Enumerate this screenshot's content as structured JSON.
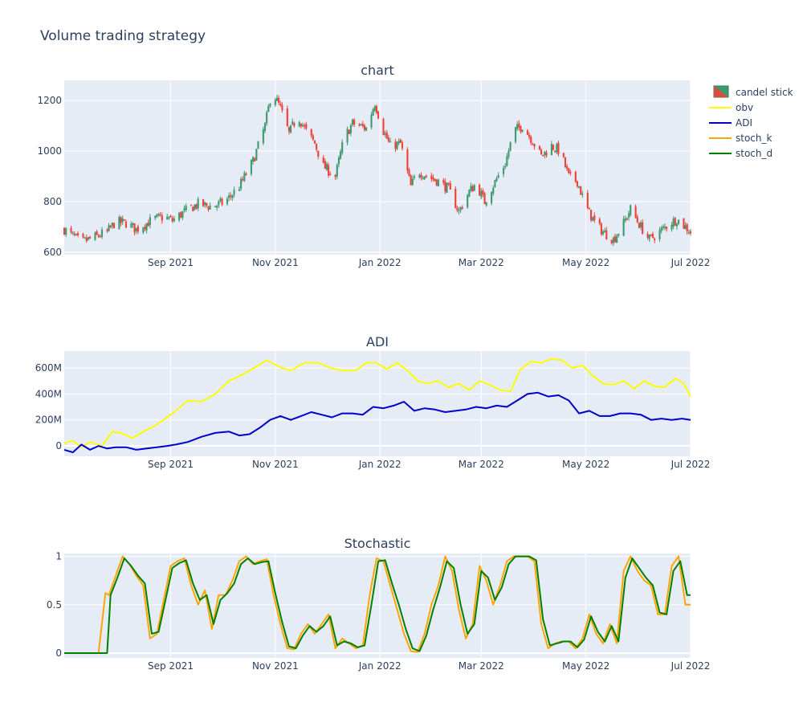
{
  "page": {
    "title": "Volume trading strategy"
  },
  "colors": {
    "plot_bg": "#e5ecf6",
    "grid": "#ffffff",
    "increasing": "#3d9970",
    "decreasing": "#ef4136",
    "obv": "#ffff00",
    "adi": "#0000cd",
    "stoch_k": "#ffa500",
    "stoch_d": "#008000"
  },
  "chart_data": [
    {
      "type": "candlestick",
      "title": "chart",
      "x_range": [
        "2021-07-01",
        "2022-07-01"
      ],
      "x_ticks": [
        "Sep 2021",
        "Nov 2021",
        "Jan 2022",
        "Mar 2022",
        "May 2022",
        "Jul 2022"
      ],
      "x_tick_days": [
        62,
        123,
        184,
        243,
        304,
        365
      ],
      "ylim": [
        590,
        1280
      ],
      "y_ticks": [
        600,
        800,
        1000,
        1200
      ],
      "y_tick_labels": [
        "600",
        "800",
        "1000",
        "1200"
      ],
      "series_name": "candel stick",
      "close_anchors_day": [
        0,
        6,
        10,
        18,
        25,
        30,
        36,
        42,
        47,
        52,
        58,
        63,
        70,
        78,
        86,
        94,
        102,
        110,
        117,
        121,
        126,
        131,
        136,
        141,
        146,
        151,
        158,
        163,
        168,
        176,
        181,
        186,
        190,
        196,
        202,
        206,
        212,
        218,
        224,
        230,
        236,
        240,
        245,
        252,
        257,
        262,
        267,
        273,
        278,
        284,
        289,
        294,
        299,
        304,
        309,
        314,
        320,
        325,
        330,
        336,
        341,
        347,
        352,
        357,
        362,
        365
      ],
      "close_anchors": [
        690,
        660,
        640,
        660,
        680,
        720,
        715,
        690,
        710,
        730,
        740,
        725,
        760,
        790,
        780,
        800,
        860,
        960,
        1100,
        1240,
        1170,
        1070,
        1140,
        1080,
        1030,
        940,
        900,
        1050,
        1110,
        1090,
        1190,
        1080,
        1020,
        1030,
        860,
        920,
        900,
        880,
        850,
        760,
        840,
        870,
        800,
        890,
        950,
        1080,
        1100,
        1040,
        980,
        1020,
        1000,
        900,
        880,
        780,
        720,
        680,
        650,
        700,
        770,
        700,
        650,
        680,
        710,
        730,
        700,
        680
      ]
    },
    {
      "type": "line",
      "title": "ADI",
      "x_range": [
        "2021-07-01",
        "2022-07-01"
      ],
      "x_ticks": [
        "Sep 2021",
        "Nov 2021",
        "Jan 2022",
        "Mar 2022",
        "May 2022",
        "Jul 2022"
      ],
      "x_tick_days": [
        62,
        123,
        184,
        243,
        304,
        365
      ],
      "ylim": [
        -80,
        730
      ],
      "y_ticks": [
        0,
        200,
        400,
        600
      ],
      "y_tick_labels": [
        "0",
        "200M",
        "400M",
        "600M"
      ],
      "y_unit": "M",
      "series": [
        {
          "name": "obv",
          "x_day": [
            0,
            5,
            10,
            15,
            22,
            28,
            33,
            40,
            46,
            52,
            58,
            65,
            72,
            80,
            88,
            96,
            104,
            112,
            118,
            125,
            132,
            140,
            148,
            155,
            162,
            170,
            176,
            182,
            188,
            194,
            200,
            206,
            212,
            218,
            224,
            230,
            236,
            242,
            248,
            254,
            260,
            266,
            272,
            278,
            284,
            290,
            296,
            302,
            308,
            314,
            320,
            326,
            332,
            338,
            344,
            350,
            356,
            361,
            365
          ],
          "values": [
            20,
            40,
            -10,
            30,
            0,
            110,
            100,
            60,
            110,
            150,
            200,
            270,
            350,
            340,
            400,
            500,
            550,
            610,
            660,
            610,
            580,
            640,
            640,
            600,
            580,
            580,
            640,
            640,
            590,
            640,
            580,
            500,
            480,
            500,
            450,
            480,
            430,
            500,
            470,
            430,
            420,
            590,
            650,
            640,
            670,
            660,
            600,
            620,
            540,
            480,
            470,
            500,
            440,
            500,
            460,
            450,
            520,
            480,
            380
          ]
        },
        {
          "name": "ADI",
          "x_day": [
            0,
            5,
            10,
            15,
            20,
            25,
            30,
            36,
            42,
            48,
            54,
            60,
            65,
            72,
            80,
            88,
            96,
            102,
            108,
            114,
            120,
            126,
            132,
            138,
            144,
            150,
            156,
            162,
            168,
            174,
            180,
            186,
            192,
            198,
            204,
            210,
            216,
            222,
            228,
            234,
            240,
            246,
            252,
            258,
            264,
            270,
            276,
            282,
            288,
            294,
            300,
            306,
            312,
            318,
            324,
            330,
            336,
            342,
            348,
            354,
            360,
            365
          ],
          "values": [
            -30,
            -50,
            10,
            -30,
            0,
            -20,
            -10,
            -10,
            -30,
            -20,
            -10,
            0,
            10,
            30,
            70,
            100,
            110,
            80,
            90,
            140,
            200,
            230,
            200,
            230,
            260,
            240,
            220,
            250,
            250,
            240,
            300,
            290,
            310,
            340,
            270,
            290,
            280,
            260,
            270,
            280,
            300,
            290,
            310,
            300,
            350,
            400,
            410,
            380,
            390,
            350,
            250,
            270,
            230,
            230,
            250,
            250,
            240,
            200,
            210,
            200,
            210,
            200
          ]
        }
      ]
    },
    {
      "type": "line",
      "title": "Stochastic",
      "x_range": [
        "2021-07-01",
        "2022-07-01"
      ],
      "x_ticks": [
        "Sep 2021",
        "Nov 2021",
        "Jan 2022",
        "Mar 2022",
        "May 2022",
        "Jul 2022"
      ],
      "x_tick_days": [
        62,
        123,
        184,
        243,
        304,
        365
      ],
      "ylim": [
        -0.05,
        1.03
      ],
      "y_ticks": [
        0,
        0.5,
        1
      ],
      "y_tick_labels": [
        "0",
        "0.5",
        "1"
      ],
      "series": [
        {
          "name": "stoch_k",
          "x_day": [
            0,
            20,
            24,
            26,
            30,
            34,
            38,
            42,
            46,
            50,
            54,
            58,
            62,
            66,
            70,
            74,
            78,
            82,
            86,
            90,
            94,
            98,
            102,
            106,
            110,
            114,
            118,
            122,
            126,
            130,
            134,
            138,
            142,
            146,
            150,
            154,
            158,
            162,
            166,
            170,
            174,
            178,
            182,
            186,
            190,
            194,
            198,
            202,
            206,
            210,
            214,
            218,
            222,
            226,
            230,
            234,
            238,
            242,
            246,
            250,
            254,
            258,
            262,
            266,
            270,
            274,
            278,
            282,
            286,
            290,
            294,
            298,
            302,
            306,
            310,
            314,
            318,
            322,
            326,
            330,
            334,
            338,
            342,
            346,
            350,
            354,
            358,
            362,
            365
          ],
          "values": [
            0,
            0,
            0.62,
            0.6,
            0.8,
            1.0,
            0.92,
            0.8,
            0.7,
            0.15,
            0.2,
            0.55,
            0.9,
            0.95,
            0.98,
            0.7,
            0.5,
            0.65,
            0.25,
            0.6,
            0.6,
            0.75,
            0.95,
            1.0,
            0.92,
            0.95,
            0.97,
            0.6,
            0.3,
            0.05,
            0.04,
            0.2,
            0.3,
            0.2,
            0.3,
            0.4,
            0.05,
            0.15,
            0.1,
            0.05,
            0.08,
            0.6,
            0.98,
            0.95,
            0.7,
            0.45,
            0.2,
            0.02,
            0.01,
            0.2,
            0.5,
            0.7,
            1.0,
            0.85,
            0.45,
            0.15,
            0.3,
            0.9,
            0.75,
            0.5,
            0.7,
            0.95,
            1.0,
            1.0,
            1.0,
            0.95,
            0.3,
            0.05,
            0.1,
            0.12,
            0.12,
            0.05,
            0.15,
            0.4,
            0.2,
            0.1,
            0.3,
            0.1,
            0.85,
            1.0,
            0.85,
            0.75,
            0.7,
            0.4,
            0.4,
            0.9,
            1.0,
            0.5,
            0.5
          ]
        },
        {
          "name": "stoch_d",
          "x_day": [
            0,
            25,
            27,
            31,
            35,
            39,
            43,
            47,
            51,
            55,
            59,
            63,
            67,
            71,
            75,
            79,
            83,
            87,
            91,
            95,
            99,
            103,
            107,
            111,
            115,
            119,
            123,
            127,
            131,
            135,
            139,
            143,
            147,
            151,
            155,
            159,
            163,
            167,
            171,
            175,
            179,
            183,
            187,
            191,
            195,
            199,
            203,
            207,
            211,
            215,
            219,
            223,
            227,
            231,
            235,
            239,
            243,
            247,
            251,
            255,
            259,
            263,
            267,
            271,
            275,
            279,
            283,
            287,
            291,
            295,
            299,
            303,
            307,
            311,
            315,
            319,
            323,
            327,
            331,
            335,
            339,
            343,
            347,
            351,
            355,
            359,
            363,
            365
          ],
          "values": [
            0,
            0,
            0.6,
            0.78,
            0.98,
            0.9,
            0.8,
            0.72,
            0.2,
            0.22,
            0.55,
            0.88,
            0.93,
            0.96,
            0.72,
            0.55,
            0.6,
            0.3,
            0.55,
            0.62,
            0.72,
            0.92,
            0.98,
            0.92,
            0.94,
            0.95,
            0.62,
            0.32,
            0.07,
            0.05,
            0.18,
            0.28,
            0.22,
            0.28,
            0.38,
            0.08,
            0.12,
            0.1,
            0.06,
            0.08,
            0.5,
            0.95,
            0.96,
            0.72,
            0.5,
            0.25,
            0.05,
            0.02,
            0.18,
            0.45,
            0.68,
            0.95,
            0.88,
            0.5,
            0.2,
            0.3,
            0.85,
            0.78,
            0.55,
            0.68,
            0.92,
            1.0,
            1.0,
            1.0,
            0.96,
            0.35,
            0.08,
            0.1,
            0.12,
            0.12,
            0.06,
            0.14,
            0.38,
            0.22,
            0.12,
            0.28,
            0.12,
            0.78,
            0.98,
            0.88,
            0.78,
            0.7,
            0.42,
            0.4,
            0.85,
            0.95,
            0.6,
            0.6
          ]
        }
      ]
    }
  ],
  "legend": {
    "items": [
      {
        "label": "candel stick",
        "kind": "candle"
      },
      {
        "label": "obv",
        "kind": "line",
        "color": "#ffff00"
      },
      {
        "label": "ADI",
        "kind": "line",
        "color": "#0000cd"
      },
      {
        "label": "stoch_k",
        "kind": "line",
        "color": "#ffa500"
      },
      {
        "label": "stoch_d",
        "kind": "line",
        "color": "#008000"
      }
    ]
  }
}
